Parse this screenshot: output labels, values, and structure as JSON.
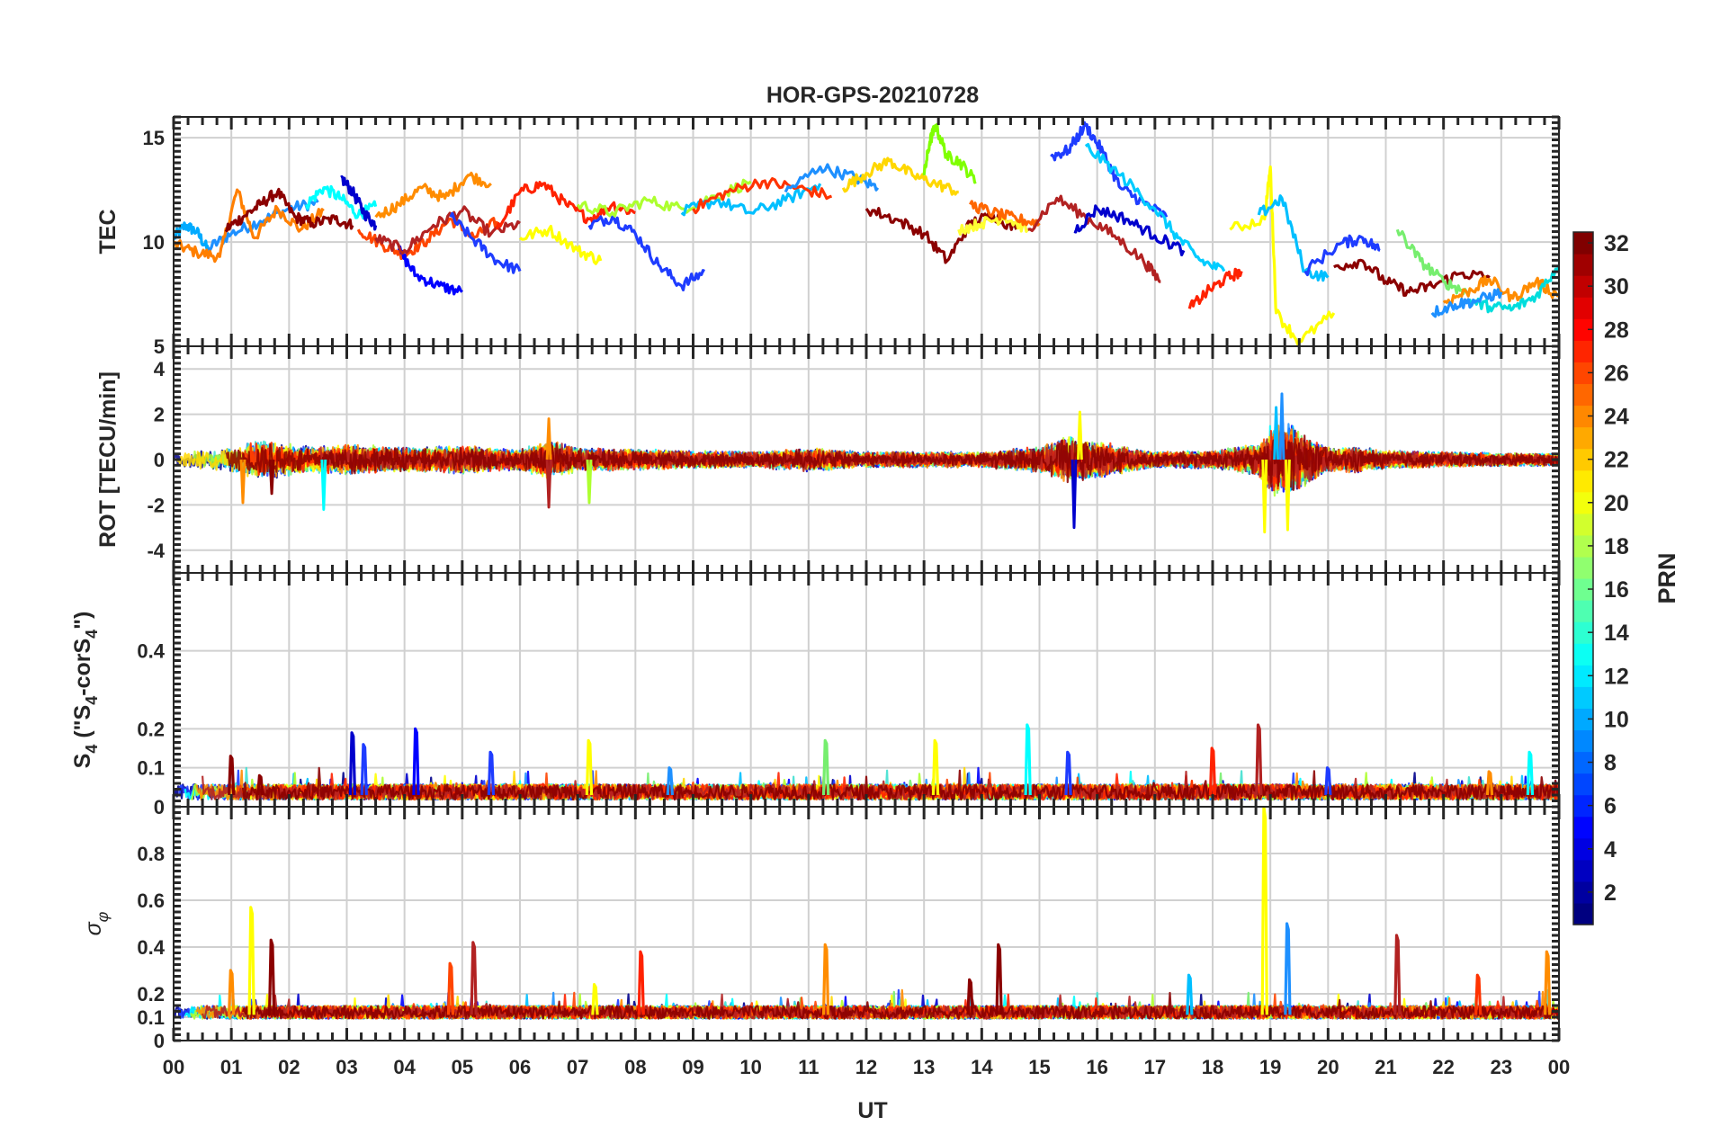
{
  "figure": {
    "title": "HOR-GPS-20210728",
    "xlabel": "UT",
    "colorbar_label": "PRN"
  },
  "chart_data": [
    {
      "type": "line",
      "panel": "tec",
      "ylabel": "TEC",
      "ylim": [
        5,
        16
      ],
      "yticks": [
        5,
        10,
        15
      ],
      "xlim": [
        0,
        24
      ],
      "grid": true,
      "x_unit": "hours UT",
      "series": [
        {
          "color": "#00aaff",
          "x": [
            0.0,
            0.2,
            0.4,
            0.6
          ],
          "y": [
            10.2,
            10.8,
            10.5,
            9.6
          ]
        },
        {
          "color": "#1e90ff",
          "x": [
            0.6,
            1.0,
            1.5,
            2.0,
            2.5
          ],
          "y": [
            9.7,
            10.4,
            11.0,
            11.6,
            11.9
          ]
        },
        {
          "color": "#ff7f00",
          "x": [
            0.0,
            0.4,
            0.8,
            1.1,
            1.4,
            1.8,
            2.2,
            2.6
          ],
          "y": [
            9.9,
            9.5,
            9.3,
            12.5,
            10.2,
            11.6,
            10.6,
            11.5
          ]
        },
        {
          "color": "#8b0000",
          "x": [
            0.9,
            1.2,
            1.5,
            1.8,
            2.1,
            2.4,
            2.8,
            3.1
          ],
          "y": [
            10.6,
            11.2,
            11.8,
            12.4,
            11.2,
            10.9,
            11.1,
            10.8
          ]
        },
        {
          "color": "#00ffff",
          "x": [
            2.3,
            2.6,
            2.9,
            3.2,
            3.5
          ],
          "y": [
            11.8,
            12.6,
            12.1,
            11.3,
            11.7
          ]
        },
        {
          "color": "#0000cd",
          "x": [
            2.9,
            3.1,
            3.3,
            3.5
          ],
          "y": [
            13.1,
            12.4,
            11.4,
            10.8
          ]
        },
        {
          "color": "#ff4500",
          "x": [
            3.2,
            3.6,
            4.0,
            4.4,
            4.8,
            5.2,
            5.6
          ],
          "y": [
            10.6,
            9.9,
            9.4,
            10.1,
            11.1,
            10.2,
            11.0
          ]
        },
        {
          "color": "#ff8c00",
          "x": [
            3.5,
            3.9,
            4.3,
            4.7,
            5.1,
            5.5
          ],
          "y": [
            11.2,
            11.8,
            12.6,
            12.1,
            13.2,
            12.8
          ]
        },
        {
          "color": "#0000ff",
          "x": [
            3.9,
            4.2,
            4.6,
            5.0
          ],
          "y": [
            9.6,
            8.4,
            7.9,
            7.6
          ]
        },
        {
          "color": "#b22222",
          "x": [
            3.5,
            4.0,
            4.5,
            5.0,
            5.5,
            6.0
          ],
          "y": [
            10.2,
            9.6,
            10.8,
            11.5,
            10.4,
            10.9
          ]
        },
        {
          "color": "#1e3cff",
          "x": [
            4.8,
            5.2,
            5.6,
            6.0
          ],
          "y": [
            11.2,
            10.1,
            9.1,
            8.6
          ]
        },
        {
          "color": "#ff2200",
          "x": [
            5.6,
            6.0,
            6.4,
            6.8,
            7.2,
            7.6,
            8.0
          ],
          "y": [
            10.6,
            12.4,
            12.8,
            11.8,
            11.1,
            11.8,
            11.4
          ]
        },
        {
          "color": "#ffff00",
          "x": [
            6.0,
            6.5,
            7.0,
            7.4
          ],
          "y": [
            10.2,
            10.6,
            9.6,
            9.1
          ]
        },
        {
          "color": "#1e3cff",
          "x": [
            7.2,
            7.6,
            8.0,
            8.4,
            8.8,
            9.2
          ],
          "y": [
            10.8,
            11.2,
            10.4,
            8.9,
            7.9,
            8.6
          ]
        },
        {
          "color": "#adff2f",
          "x": [
            7.0,
            7.6,
            8.2,
            8.8,
            9.4,
            10.0
          ],
          "y": [
            11.8,
            11.4,
            12.0,
            11.6,
            12.2,
            12.9
          ]
        },
        {
          "color": "#00bfff",
          "x": [
            8.8,
            9.4,
            10.0,
            10.6,
            11.2
          ],
          "y": [
            11.4,
            12.0,
            11.4,
            12.0,
            12.8
          ]
        },
        {
          "color": "#ff3300",
          "x": [
            9.0,
            9.6,
            10.2,
            10.8,
            11.4
          ],
          "y": [
            11.6,
            12.4,
            12.9,
            12.6,
            12.2
          ]
        },
        {
          "color": "#1e90ff",
          "x": [
            10.6,
            11.2,
            11.8,
            12.2
          ],
          "y": [
            12.4,
            13.6,
            13.1,
            12.6
          ]
        },
        {
          "color": "#ffd700",
          "x": [
            11.6,
            12.0,
            12.4,
            12.8,
            13.2,
            13.6
          ],
          "y": [
            12.6,
            13.3,
            13.9,
            13.2,
            12.8,
            12.4
          ]
        },
        {
          "color": "#7fff00",
          "x": [
            13.0,
            13.1,
            13.2,
            13.4,
            13.6,
            13.9
          ],
          "y": [
            13.2,
            14.8,
            15.6,
            14.1,
            13.9,
            12.9
          ]
        },
        {
          "color": "#8b0000",
          "x": [
            12.0,
            12.5,
            13.0,
            13.4,
            13.8,
            14.2,
            14.6
          ],
          "y": [
            11.6,
            11.1,
            10.4,
            9.1,
            10.9,
            11.3,
            10.6
          ]
        },
        {
          "color": "#ffff33",
          "x": [
            13.6,
            14.0,
            14.4,
            14.8
          ],
          "y": [
            10.6,
            10.9,
            11.2,
            10.6
          ]
        },
        {
          "color": "#ff6600",
          "x": [
            13.8,
            14.2,
            14.6,
            15.0
          ],
          "y": [
            11.8,
            11.4,
            11.1,
            10.9
          ]
        },
        {
          "color": "#1e3cff",
          "x": [
            15.2,
            15.5,
            15.8,
            16.1,
            16.4,
            16.8,
            17.2
          ],
          "y": [
            14.1,
            14.4,
            15.6,
            14.3,
            12.6,
            11.9,
            11.2
          ]
        },
        {
          "color": "#00ccff",
          "x": [
            15.8,
            16.4,
            17.0,
            17.4,
            17.8,
            18.2
          ],
          "y": [
            14.6,
            13.2,
            11.6,
            10.2,
            9.1,
            8.6
          ]
        },
        {
          "color": "#b22222",
          "x": [
            14.8,
            15.3,
            15.8,
            16.3,
            16.8,
            17.1
          ],
          "y": [
            10.6,
            12.1,
            11.2,
            10.3,
            9.1,
            8.1
          ]
        },
        {
          "color": "#0000cd",
          "x": [
            15.6,
            16.0,
            16.5,
            17.0,
            17.5
          ],
          "y": [
            10.5,
            11.6,
            11.1,
            10.3,
            9.6
          ]
        },
        {
          "color": "#ff2200",
          "x": [
            17.6,
            17.9,
            18.2,
            18.5
          ],
          "y": [
            6.8,
            7.6,
            8.2,
            8.6
          ]
        },
        {
          "color": "#ffff00",
          "x": [
            18.3,
            18.9,
            19.0,
            19.1,
            19.5,
            20.1
          ],
          "y": [
            10.6,
            11.1,
            13.6,
            6.6,
            5.2,
            6.6
          ]
        },
        {
          "color": "#00bfff",
          "x": [
            18.8,
            19.2,
            19.6,
            20.0
          ],
          "y": [
            11.3,
            12.1,
            8.6,
            8.3
          ]
        },
        {
          "color": "#1e3cff",
          "x": [
            19.6,
            20.2,
            20.6,
            20.9
          ],
          "y": [
            8.6,
            9.9,
            10.2,
            9.6
          ]
        },
        {
          "color": "#8b0000",
          "x": [
            20.1,
            20.6,
            21.0,
            21.4,
            21.8,
            22.3,
            22.8
          ],
          "y": [
            8.8,
            9.1,
            8.1,
            7.6,
            7.9,
            8.5,
            8.3
          ]
        },
        {
          "color": "#76ee6e",
          "x": [
            21.2,
            21.6,
            22.0,
            22.4
          ],
          "y": [
            10.6,
            9.1,
            8.1,
            7.6
          ]
        },
        {
          "color": "#ff8c00",
          "x": [
            22.0,
            22.4,
            22.8,
            23.2,
            23.6,
            24.0
          ],
          "y": [
            7.1,
            7.6,
            8.2,
            7.3,
            8.1,
            7.4
          ]
        },
        {
          "color": "#00dddd",
          "x": [
            22.4,
            22.8,
            23.2,
            23.6,
            24.0
          ],
          "y": [
            7.2,
            6.9,
            6.8,
            7.4,
            8.9
          ]
        },
        {
          "color": "#1e90ff",
          "x": [
            21.8,
            22.2,
            22.6,
            23.0
          ],
          "y": [
            6.6,
            7.0,
            7.2,
            7.6
          ]
        }
      ]
    },
    {
      "type": "line",
      "panel": "rot",
      "ylabel": "ROT [TECU/min]",
      "ylim": [
        -5,
        5
      ],
      "yticks": [
        -4,
        -2,
        0,
        2,
        4
      ],
      "xlim": [
        0,
        24
      ],
      "grid": true,
      "envelope": {
        "x": [
          0,
          1,
          1.5,
          2,
          2.5,
          3,
          4,
          5,
          6,
          6.5,
          7,
          8,
          9,
          10,
          11,
          12,
          13,
          14,
          15,
          15.5,
          16,
          17,
          18,
          18.8,
          19,
          19.3,
          19.6,
          20,
          20.5,
          21,
          22,
          23,
          24
        ],
        "amplitude": [
          0.6,
          0.9,
          1.6,
          1.2,
          1.0,
          1.2,
          0.9,
          1.1,
          0.8,
          1.5,
          0.9,
          0.8,
          0.7,
          0.6,
          0.9,
          0.6,
          0.6,
          0.6,
          1.0,
          1.8,
          1.4,
          0.6,
          0.7,
          1.2,
          2.6,
          3.0,
          2.0,
          0.9,
          1.0,
          0.7,
          0.6,
          0.5,
          0.5
        ]
      },
      "peaks": [
        {
          "x": 1.2,
          "y": -1.9,
          "color": "#ff8c00"
        },
        {
          "x": 1.7,
          "y": -1.5,
          "color": "#8b0000"
        },
        {
          "x": 2.6,
          "y": -2.2,
          "color": "#00ffff"
        },
        {
          "x": 6.5,
          "y": -2.1,
          "color": "#b22222"
        },
        {
          "x": 6.5,
          "y": 1.8,
          "color": "#ff8c00"
        },
        {
          "x": 7.2,
          "y": -1.9,
          "color": "#adff2f"
        },
        {
          "x": 15.6,
          "y": -3.0,
          "color": "#0000cd"
        },
        {
          "x": 15.7,
          "y": 2.1,
          "color": "#ffff00"
        },
        {
          "x": 18.9,
          "y": -3.2,
          "color": "#ffff00"
        },
        {
          "x": 19.2,
          "y": 2.9,
          "color": "#1e90ff"
        },
        {
          "x": 19.3,
          "y": -3.1,
          "color": "#ffff00"
        },
        {
          "x": 19.1,
          "y": 2.3,
          "color": "#00bfff"
        }
      ]
    },
    {
      "type": "line",
      "panel": "s4",
      "ylabel": "S4 (\"S4-corS4\")",
      "ylim": [
        0,
        0.6
      ],
      "yticks": [
        0,
        0.1,
        0.2,
        0.4
      ],
      "xlim": [
        0,
        24
      ],
      "grid": true,
      "baseline": 0.03,
      "peaks": [
        {
          "x": 1.0,
          "y": 0.13,
          "color": "#8b0000"
        },
        {
          "x": 1.5,
          "y": 0.08,
          "color": "#8b0000"
        },
        {
          "x": 3.1,
          "y": 0.19,
          "color": "#0000cd"
        },
        {
          "x": 3.3,
          "y": 0.16,
          "color": "#1e3cff"
        },
        {
          "x": 4.2,
          "y": 0.2,
          "color": "#0000ff"
        },
        {
          "x": 5.5,
          "y": 0.14,
          "color": "#1e3cff"
        },
        {
          "x": 7.2,
          "y": 0.17,
          "color": "#ffff00"
        },
        {
          "x": 8.6,
          "y": 0.1,
          "color": "#1e90ff"
        },
        {
          "x": 11.3,
          "y": 0.17,
          "color": "#76ee6e"
        },
        {
          "x": 13.2,
          "y": 0.17,
          "color": "#ffff00"
        },
        {
          "x": 14.8,
          "y": 0.21,
          "color": "#00ffff"
        },
        {
          "x": 15.5,
          "y": 0.14,
          "color": "#1e3cff"
        },
        {
          "x": 18.8,
          "y": 0.21,
          "color": "#b22222"
        },
        {
          "x": 18.0,
          "y": 0.15,
          "color": "#ff2200"
        },
        {
          "x": 20.0,
          "y": 0.1,
          "color": "#1e3cff"
        },
        {
          "x": 23.5,
          "y": 0.14,
          "color": "#00ffff"
        },
        {
          "x": 22.8,
          "y": 0.09,
          "color": "#ff8c00"
        }
      ]
    },
    {
      "type": "line",
      "panel": "sigma_phi",
      "ylabel": "σφ",
      "ylim": [
        0,
        1
      ],
      "yticks": [
        0,
        0.1,
        0.2,
        0.4,
        0.6,
        0.8
      ],
      "xlim": [
        0,
        24
      ],
      "grid": true,
      "baseline": 0.11,
      "peaks": [
        {
          "x": 1.0,
          "y": 0.3,
          "color": "#ff8c00"
        },
        {
          "x": 1.35,
          "y": 0.57,
          "color": "#ffff00"
        },
        {
          "x": 1.7,
          "y": 0.43,
          "color": "#8b0000"
        },
        {
          "x": 4.8,
          "y": 0.33,
          "color": "#ff4500"
        },
        {
          "x": 5.2,
          "y": 0.42,
          "color": "#b22222"
        },
        {
          "x": 8.1,
          "y": 0.38,
          "color": "#ff2200"
        },
        {
          "x": 11.3,
          "y": 0.41,
          "color": "#ff8c00"
        },
        {
          "x": 13.8,
          "y": 0.26,
          "color": "#8b0000"
        },
        {
          "x": 14.3,
          "y": 0.41,
          "color": "#8b0000"
        },
        {
          "x": 17.6,
          "y": 0.28,
          "color": "#00bfff"
        },
        {
          "x": 18.9,
          "y": 1.0,
          "color": "#ffff00"
        },
        {
          "x": 19.3,
          "y": 0.5,
          "color": "#1e90ff"
        },
        {
          "x": 21.2,
          "y": 0.45,
          "color": "#b22222"
        },
        {
          "x": 22.6,
          "y": 0.28,
          "color": "#ff3300"
        },
        {
          "x": 23.8,
          "y": 0.38,
          "color": "#ff8c00"
        },
        {
          "x": 7.3,
          "y": 0.24,
          "color": "#ffff00"
        }
      ]
    }
  ],
  "xaxis": {
    "ticks": [
      "00",
      "01",
      "02",
      "03",
      "04",
      "05",
      "06",
      "07",
      "08",
      "09",
      "10",
      "11",
      "12",
      "13",
      "14",
      "15",
      "16",
      "17",
      "18",
      "19",
      "20",
      "21",
      "22",
      "23",
      "00"
    ]
  },
  "colorbar": {
    "min": 1,
    "max": 32,
    "ticks": [
      2,
      4,
      6,
      8,
      10,
      12,
      14,
      16,
      18,
      20,
      22,
      24,
      26,
      28,
      30,
      32
    ],
    "colormap": "jet"
  }
}
